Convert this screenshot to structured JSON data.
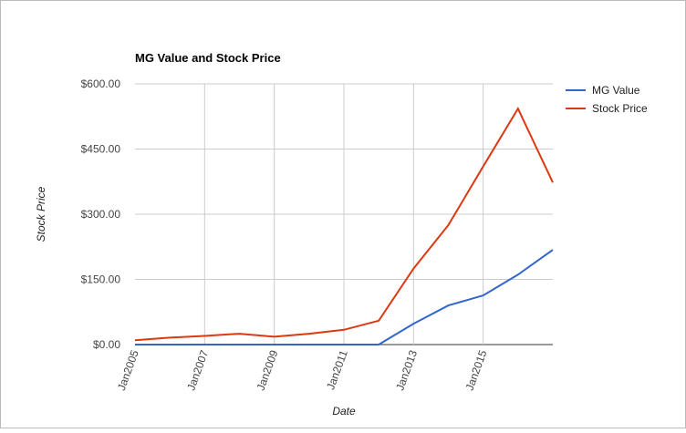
{
  "chart_data": {
    "type": "line",
    "title": "MG Value and Stock Price",
    "x_label": "Date",
    "y_label": "Stock Price",
    "categories": [
      "Jan2005",
      null,
      "Jan2007",
      null,
      "Jan2009",
      null,
      "Jan2011",
      null,
      "Jan2013",
      null,
      "Jan2015",
      null,
      null
    ],
    "series": [
      {
        "name": "MG Value",
        "color": "#3366cc",
        "values": [
          0,
          0,
          0,
          0,
          0,
          0,
          0,
          0,
          48,
          90,
          113,
          161,
          218
        ]
      },
      {
        "name": "Stock Price",
        "color": "#dc3912",
        "values": [
          10,
          16,
          20,
          25,
          18,
          25,
          34,
          55,
          175,
          275,
          410,
          543,
          373
        ]
      }
    ],
    "ylim": [
      0,
      600
    ],
    "yticks": [
      {
        "value": 0,
        "label": "$0.00"
      },
      {
        "value": 150,
        "label": "$150.00"
      },
      {
        "value": 300,
        "label": "$300.00"
      },
      {
        "value": 450,
        "label": "$450.00"
      },
      {
        "value": 600,
        "label": "$600.00"
      }
    ],
    "grid": true,
    "legend": "right"
  }
}
